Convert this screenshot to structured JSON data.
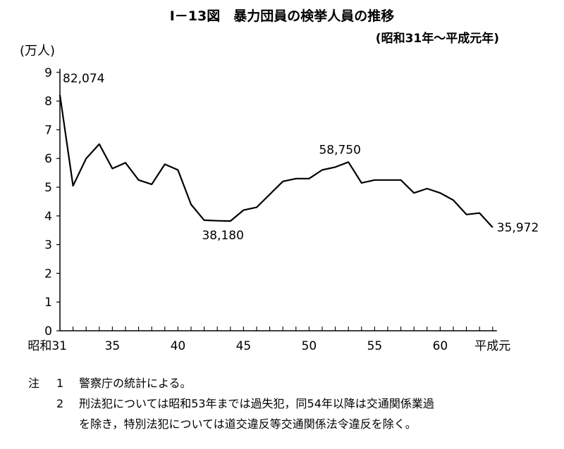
{
  "title": "I－13図　暴力団員の検挙人員の推移",
  "subtitle": "(昭和31年～平成元年)",
  "chart_data": {
    "type": "line",
    "ylabel": "(万人)",
    "ylim": [
      0,
      9
    ],
    "y_ticks": [
      "0",
      "1",
      "2",
      "3",
      "4",
      "5",
      "6",
      "7",
      "8",
      "9"
    ],
    "x_tick_labels": [
      {
        "x": 31,
        "label": "昭和31"
      },
      {
        "x": 35,
        "label": "35"
      },
      {
        "x": 40,
        "label": "40"
      },
      {
        "x": 45,
        "label": "45"
      },
      {
        "x": 50,
        "label": "50"
      },
      {
        "x": 55,
        "label": "55"
      },
      {
        "x": 60,
        "label": "60"
      },
      {
        "x": 64,
        "label": "平成元"
      }
    ],
    "x": [
      31,
      32,
      33,
      34,
      35,
      36,
      37,
      38,
      39,
      40,
      41,
      42,
      43,
      44,
      45,
      46,
      47,
      48,
      49,
      50,
      51,
      52,
      53,
      54,
      55,
      56,
      57,
      58,
      59,
      60,
      61,
      62,
      63,
      64
    ],
    "values": [
      8.21,
      5.05,
      6.0,
      6.5,
      5.65,
      5.85,
      5.25,
      5.1,
      5.8,
      5.6,
      4.4,
      3.85,
      3.83,
      3.82,
      4.2,
      4.3,
      4.75,
      5.2,
      5.3,
      5.3,
      5.6,
      5.7,
      5.875,
      5.15,
      5.25,
      5.25,
      5.25,
      4.8,
      4.95,
      4.8,
      4.55,
      4.05,
      4.1,
      3.6
    ],
    "annotations": [
      {
        "x": 31,
        "y": 8.21,
        "text": "82,074"
      },
      {
        "x": 43,
        "y": 3.82,
        "text": "38,180"
      },
      {
        "x": 53,
        "y": 5.875,
        "text": "58,750"
      },
      {
        "x": 64,
        "y": 3.6,
        "text": "35,972"
      }
    ]
  },
  "notes": {
    "label": "注",
    "items": [
      {
        "num": "1",
        "lines": [
          "警察庁の統計による。"
        ]
      },
      {
        "num": "2",
        "lines": [
          "刑法犯については昭和53年までは過失犯，同54年以降は交通関係業過",
          "を除き，特別法犯については道交違反等交通関係法令違反を除く。"
        ]
      }
    ]
  }
}
